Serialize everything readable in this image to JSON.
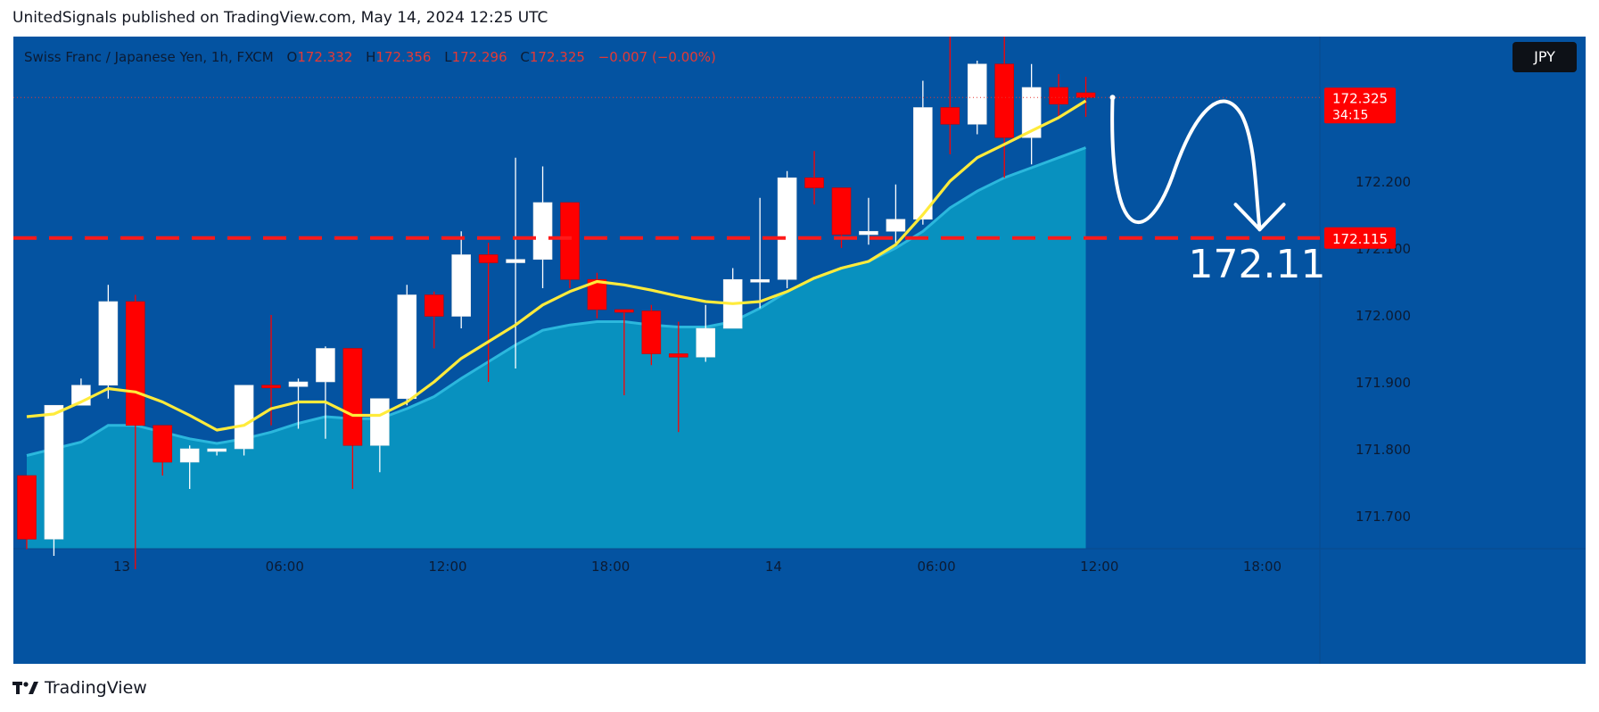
{
  "header": {
    "publish_text": "UnitedSignals published on TradingView.com, May 14, 2024 12:25 UTC"
  },
  "legend": {
    "symbol": "Swiss Franc / Japanese Yen, 1h, FXCM",
    "open_label": "O",
    "open": "172.332",
    "high_label": "H",
    "high": "172.356",
    "low_label": "L",
    "low": "172.296",
    "close_label": "C",
    "close": "172.325",
    "change": "−0.007 (−0.00%)"
  },
  "currency_button": "JPY",
  "footer": {
    "brand": "TradingView"
  },
  "colors": {
    "background": "#0453a1",
    "bullish": "#ffffff",
    "bearish": "#ff0000",
    "ema_line": "#ffeb3b",
    "area_fill": "#0aa6c9",
    "price_label": "#ff0000"
  },
  "chart_data": {
    "type": "candlestick",
    "symbol": "CHFJPY",
    "timeframe": "1h",
    "ylim": [
      171.62,
      172.45
    ],
    "y_ticks": [
      "172.200",
      "172.100",
      "172.000",
      "171.900",
      "171.800",
      "171.700"
    ],
    "x_ticks": [
      "13",
      "06:00",
      "12:00",
      "18:00",
      "14",
      "06:00",
      "12:00",
      "18:00"
    ],
    "candles": [
      {
        "o": 171.76,
        "h": 171.76,
        "l": 171.65,
        "c": 171.665
      },
      {
        "o": 171.665,
        "h": 171.865,
        "l": 171.64,
        "c": 171.865
      },
      {
        "o": 171.865,
        "h": 171.905,
        "l": 171.865,
        "c": 171.895
      },
      {
        "o": 171.895,
        "h": 172.045,
        "l": 171.875,
        "c": 172.02
      },
      {
        "o": 172.02,
        "h": 172.03,
        "l": 171.62,
        "c": 171.835
      },
      {
        "o": 171.835,
        "h": 171.835,
        "l": 171.76,
        "c": 171.78
      },
      {
        "o": 171.78,
        "h": 171.805,
        "l": 171.74,
        "c": 171.8
      },
      {
        "o": 171.8,
        "h": 171.8,
        "l": 171.79,
        "c": 171.8
      },
      {
        "o": 171.8,
        "h": 171.895,
        "l": 171.79,
        "c": 171.895
      },
      {
        "o": 171.895,
        "h": 172.0,
        "l": 171.835,
        "c": 171.893
      },
      {
        "o": 171.893,
        "h": 171.905,
        "l": 171.83,
        "c": 171.9
      },
      {
        "o": 171.9,
        "h": 171.953,
        "l": 171.815,
        "c": 171.95
      },
      {
        "o": 171.95,
        "h": 171.95,
        "l": 171.74,
        "c": 171.805
      },
      {
        "o": 171.805,
        "h": 171.875,
        "l": 171.765,
        "c": 171.875
      },
      {
        "o": 171.875,
        "h": 172.045,
        "l": 171.865,
        "c": 172.03
      },
      {
        "o": 172.03,
        "h": 172.035,
        "l": 171.95,
        "c": 171.998
      },
      {
        "o": 171.998,
        "h": 172.125,
        "l": 171.98,
        "c": 172.09
      },
      {
        "o": 172.09,
        "h": 172.108,
        "l": 171.9,
        "c": 172.078
      },
      {
        "o": 172.078,
        "h": 172.235,
        "l": 171.92,
        "c": 172.083
      },
      {
        "o": 172.083,
        "h": 172.222,
        "l": 172.04,
        "c": 172.168
      },
      {
        "o": 172.168,
        "h": 172.168,
        "l": 172.04,
        "c": 172.053
      },
      {
        "o": 172.053,
        "h": 172.063,
        "l": 171.995,
        "c": 172.008
      },
      {
        "o": 172.008,
        "h": 172.008,
        "l": 171.88,
        "c": 172.006
      },
      {
        "o": 172.006,
        "h": 172.015,
        "l": 171.925,
        "c": 171.942
      },
      {
        "o": 171.942,
        "h": 171.99,
        "l": 171.825,
        "c": 171.937
      },
      {
        "o": 171.937,
        "h": 172.015,
        "l": 171.93,
        "c": 171.98
      },
      {
        "o": 171.98,
        "h": 172.07,
        "l": 171.985,
        "c": 172.053
      },
      {
        "o": 172.053,
        "h": 172.175,
        "l": 172.01,
        "c": 172.053
      },
      {
        "o": 172.053,
        "h": 172.215,
        "l": 172.04,
        "c": 172.205
      },
      {
        "o": 172.205,
        "h": 172.245,
        "l": 172.165,
        "c": 172.19
      },
      {
        "o": 172.19,
        "h": 172.19,
        "l": 172.1,
        "c": 172.12
      },
      {
        "o": 172.12,
        "h": 172.175,
        "l": 172.105,
        "c": 172.125
      },
      {
        "o": 172.125,
        "h": 172.195,
        "l": 172.105,
        "c": 172.143
      },
      {
        "o": 172.143,
        "h": 172.35,
        "l": 172.135,
        "c": 172.31
      },
      {
        "o": 172.31,
        "h": 172.455,
        "l": 172.24,
        "c": 172.285
      },
      {
        "o": 172.285,
        "h": 172.38,
        "l": 172.27,
        "c": 172.375
      },
      {
        "o": 172.375,
        "h": 172.455,
        "l": 172.205,
        "c": 172.265
      },
      {
        "o": 172.265,
        "h": 172.375,
        "l": 172.225,
        "c": 172.34
      },
      {
        "o": 172.34,
        "h": 172.36,
        "l": 172.295,
        "c": 172.315
      },
      {
        "o": 172.332,
        "h": 172.356,
        "l": 172.296,
        "c": 172.325
      }
    ],
    "ema_line": [
      171.848,
      171.852,
      171.87,
      171.89,
      171.885,
      171.87,
      171.85,
      171.828,
      171.835,
      171.86,
      171.87,
      171.87,
      171.85,
      171.85,
      171.87,
      171.9,
      171.935,
      171.96,
      171.985,
      172.015,
      172.035,
      172.05,
      172.045,
      172.037,
      172.028,
      172.02,
      172.017,
      172.02,
      172.035,
      172.055,
      172.07,
      172.08,
      172.105,
      172.15,
      172.2,
      172.235,
      172.255,
      172.275,
      172.295,
      172.32
    ],
    "area_line": [
      171.79,
      171.8,
      171.81,
      171.835,
      171.835,
      171.825,
      171.815,
      171.808,
      171.815,
      171.825,
      171.838,
      171.848,
      171.845,
      171.845,
      171.86,
      171.878,
      171.905,
      171.93,
      171.955,
      171.977,
      171.985,
      171.99,
      171.99,
      171.985,
      171.982,
      171.982,
      171.99,
      172.01,
      172.035,
      172.055,
      172.07,
      172.08,
      172.1,
      172.125,
      172.16,
      172.185,
      172.205,
      172.22,
      172.235,
      172.25
    ],
    "current_price": {
      "label": "172.325",
      "countdown": "34:15"
    },
    "target_line": {
      "value": 172.115,
      "label": "172.115"
    },
    "annotation": {
      "text": "172.11",
      "kind": "forecast-arrow"
    }
  }
}
